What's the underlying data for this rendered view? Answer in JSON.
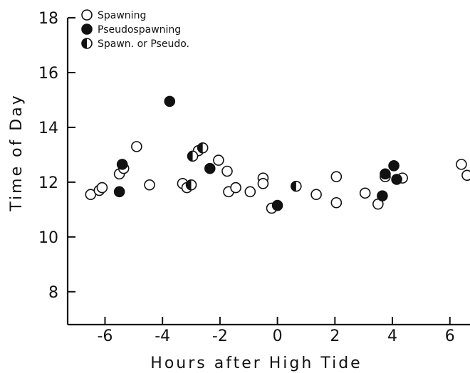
{
  "chart_data": {
    "type": "scatter",
    "title": "",
    "xlabel": "Hours after High Tide",
    "ylabel": "Time of Day",
    "xlim": [
      -7.3,
      6.7
    ],
    "ylim": [
      6.8,
      18
    ],
    "xticks": [
      "-6",
      "-4",
      "-2",
      "0",
      "2",
      "4",
      "6"
    ],
    "yticks": [
      "8",
      "10",
      "12",
      "14",
      "16",
      "18"
    ],
    "grid": false,
    "legend_position": "top-left",
    "series": [
      {
        "name": "Spawning",
        "marker": "open",
        "points": [
          {
            "x": -6.5,
            "y": 11.55
          },
          {
            "x": -6.2,
            "y": 11.7
          },
          {
            "x": -6.1,
            "y": 11.8
          },
          {
            "x": -5.5,
            "y": 12.3
          },
          {
            "x": -5.35,
            "y": 12.5
          },
          {
            "x": -4.9,
            "y": 13.3
          },
          {
            "x": -4.45,
            "y": 11.9
          },
          {
            "x": -3.3,
            "y": 11.95
          },
          {
            "x": -3.15,
            "y": 11.8
          },
          {
            "x": -2.75,
            "y": 13.15
          },
          {
            "x": -2.05,
            "y": 12.8
          },
          {
            "x": -1.75,
            "y": 12.4
          },
          {
            "x": -1.7,
            "y": 11.65
          },
          {
            "x": -1.45,
            "y": 11.8
          },
          {
            "x": -0.95,
            "y": 11.65
          },
          {
            "x": -0.5,
            "y": 12.15
          },
          {
            "x": -0.5,
            "y": 11.95
          },
          {
            "x": -0.2,
            "y": 11.05
          },
          {
            "x": 1.35,
            "y": 11.55
          },
          {
            "x": 2.05,
            "y": 12.2
          },
          {
            "x": 2.05,
            "y": 11.25
          },
          {
            "x": 3.05,
            "y": 11.6
          },
          {
            "x": 3.5,
            "y": 11.2
          },
          {
            "x": 3.75,
            "y": 12.2
          },
          {
            "x": 4.35,
            "y": 12.15
          },
          {
            "x": 6.4,
            "y": 12.65
          },
          {
            "x": 6.6,
            "y": 12.25
          }
        ]
      },
      {
        "name": "Pseudospawning",
        "marker": "filled",
        "points": [
          {
            "x": -5.5,
            "y": 11.65
          },
          {
            "x": -5.4,
            "y": 12.65
          },
          {
            "x": -3.75,
            "y": 14.95
          },
          {
            "x": -2.35,
            "y": 12.5
          },
          {
            "x": 0.0,
            "y": 11.15
          },
          {
            "x": 3.65,
            "y": 11.5
          },
          {
            "x": 3.75,
            "y": 12.3
          },
          {
            "x": 4.05,
            "y": 12.6
          },
          {
            "x": 4.15,
            "y": 12.1
          }
        ]
      },
      {
        "name": "Spawn. or Pseudo.",
        "marker": "half",
        "points": [
          {
            "x": -3.0,
            "y": 11.9
          },
          {
            "x": -2.95,
            "y": 12.95
          },
          {
            "x": -2.6,
            "y": 13.25
          },
          {
            "x": 0.65,
            "y": 11.85
          }
        ]
      }
    ]
  }
}
